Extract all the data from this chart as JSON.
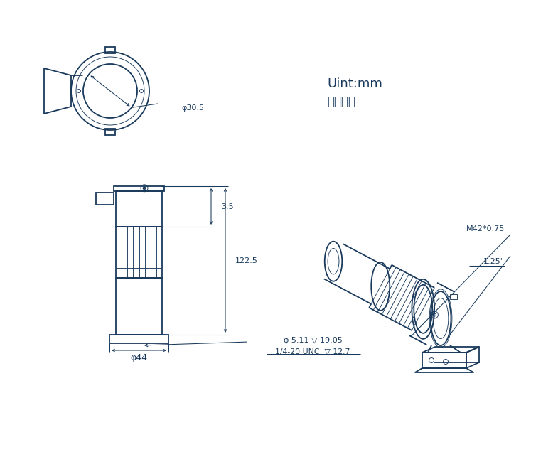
{
  "bg_color": "#ffffff",
  "line_color": "#1a3a5c",
  "text_color": "#1a3a5c",
  "title_unit": "Uint:mm",
  "title_chinese": "单位毫米",
  "dim_phi30": "φ30.5",
  "dim_phi44": "φ44",
  "dim_35": "3.5",
  "dim_1225": "122.5",
  "dim_hole": "φ 5.11 ▽ 19.05",
  "dim_unc": "1/4-20 UNC  ▽ 12.7",
  "dim_m42": "M42*0.75",
  "dim_125": "1.25\""
}
